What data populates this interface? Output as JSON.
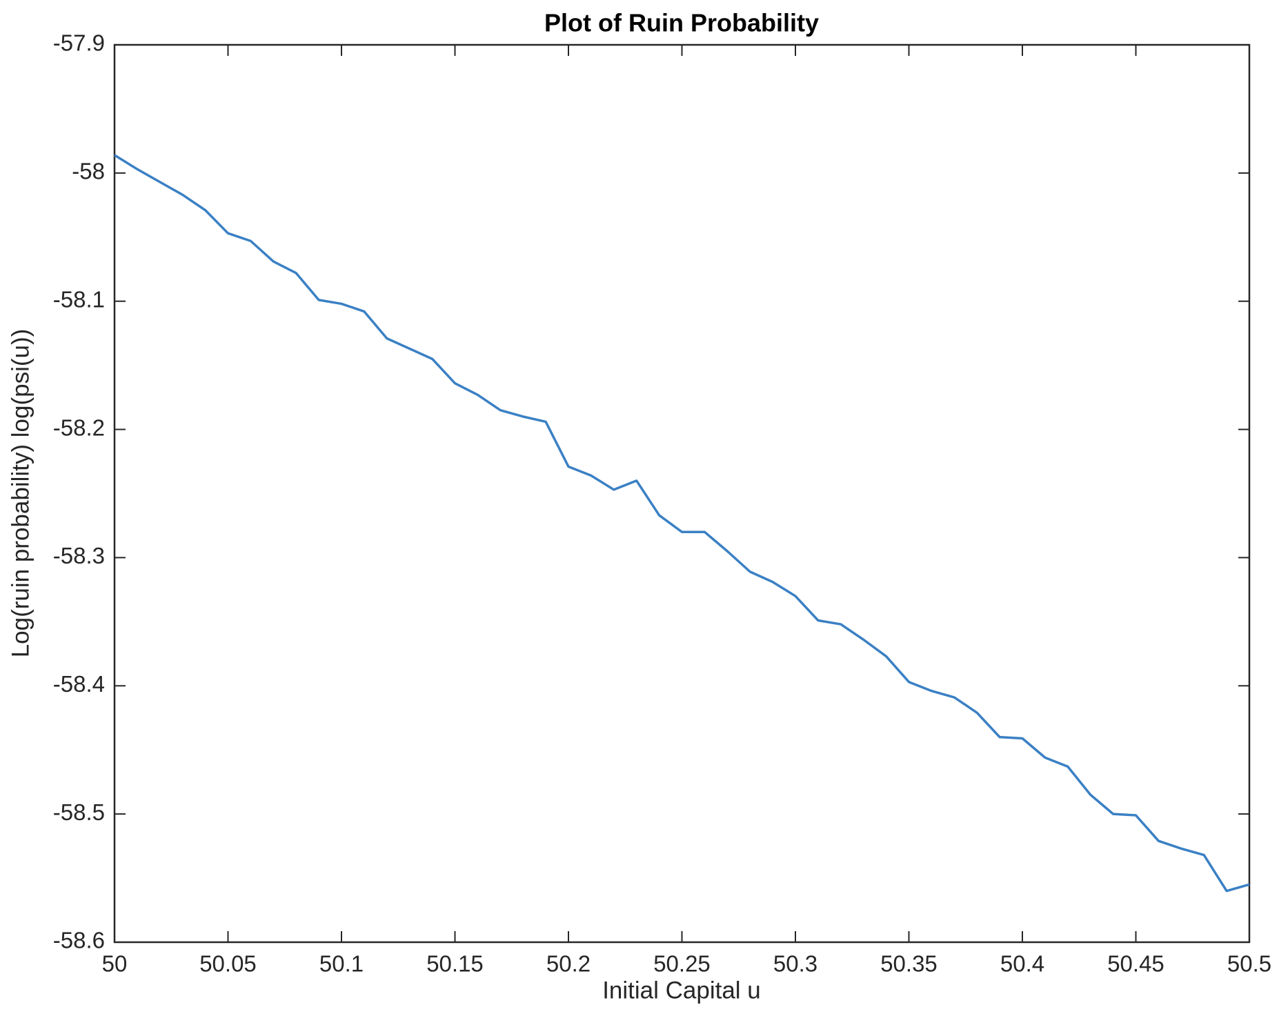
{
  "chart_data": {
    "type": "line",
    "title": "Plot of Ruin Probability",
    "xlabel": "Initial Capital u",
    "ylabel": "Log(ruin probability) log(psi(u))",
    "x": [
      50,
      50.01,
      50.02,
      50.03,
      50.04,
      50.05,
      50.06,
      50.07,
      50.08,
      50.09,
      50.1,
      50.11,
      50.12,
      50.13,
      50.14,
      50.15,
      50.16,
      50.17,
      50.18,
      50.19,
      50.2,
      50.21,
      50.22,
      50.23,
      50.24,
      50.25,
      50.26,
      50.27,
      50.28,
      50.29,
      50.3,
      50.31,
      50.32,
      50.33,
      50.34,
      50.35,
      50.36,
      50.37,
      50.38,
      50.39,
      50.4,
      50.41,
      50.42,
      50.43,
      50.44,
      50.45,
      50.46,
      50.47,
      50.48,
      50.49,
      50.5
    ],
    "values": [
      -57.986,
      -57.997,
      -58.007,
      -58.017,
      -58.029,
      -58.047,
      -58.053,
      -58.069,
      -58.078,
      -58.099,
      -58.102,
      -58.108,
      -58.129,
      -58.137,
      -58.145,
      -58.164,
      -58.173,
      -58.185,
      -58.19,
      -58.194,
      -58.229,
      -58.236,
      -58.247,
      -58.24,
      -58.267,
      -58.28,
      -58.28,
      -58.295,
      -58.311,
      -58.319,
      -58.33,
      -58.349,
      -58.352,
      -58.364,
      -58.377,
      -58.397,
      -58.404,
      -58.409,
      -58.421,
      -58.44,
      -58.441,
      -58.456,
      -58.463,
      -58.485,
      -58.5,
      -58.501,
      -58.521,
      -58.527,
      -58.532,
      -58.56,
      -58.555
    ],
    "color": "#3a80c4",
    "xlim": [
      50,
      50.5
    ],
    "xticks": [
      50,
      50.05,
      50.1,
      50.15,
      50.2,
      50.25,
      50.3,
      50.35,
      50.4,
      50.45,
      50.5
    ],
    "ylim": [
      -58.6,
      -57.9
    ],
    "yticks": [
      -58.6,
      -58.5,
      -58.4,
      -58.3,
      -58.2,
      -58.1,
      -58,
      -57.9
    ],
    "grid": false
  }
}
